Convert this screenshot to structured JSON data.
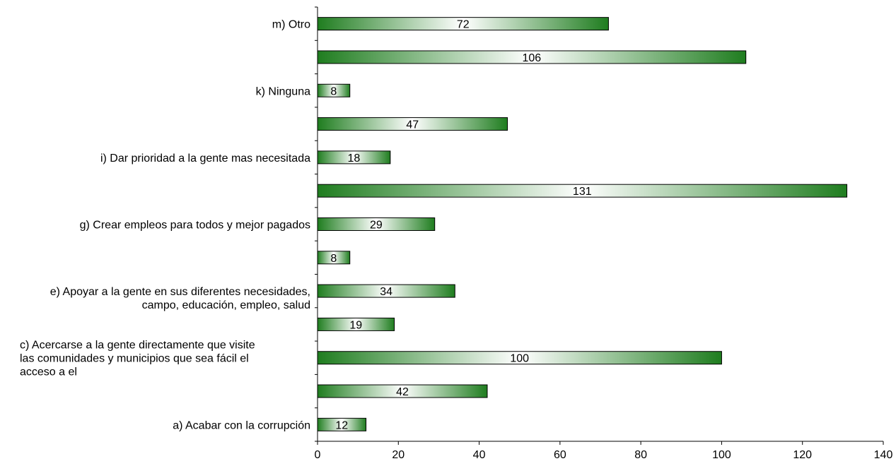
{
  "colors": {
    "bar_dark": "#1f7d1f",
    "bar_light": "#ffffff",
    "bar_stroke": "#000000",
    "axis": "#000000"
  },
  "chart_data": {
    "type": "bar",
    "orientation": "horizontal",
    "title": "",
    "xlabel": "",
    "ylabel": "",
    "xlim": [
      0,
      140
    ],
    "x_ticks": [
      "0",
      "20",
      "40",
      "60",
      "80",
      "100",
      "120",
      "140"
    ],
    "grid": false,
    "legend": "none",
    "categories": [
      "a) Acabar con la corrupción",
      "",
      "c) Acercarse a la gente directamente que visite las comunidades y municipios que sea fácil el acceso a el",
      "",
      "e) Apoyar a la gente en sus diferentes necesidades, campo, educación, empleo, salud",
      "",
      "g) Crear empleos para todos y mejor pagados",
      "",
      "i) Dar prioridad a la gente mas necesitada",
      "",
      "k) Ninguna",
      "",
      "m) Otro"
    ],
    "category_lines": [
      [
        "a) Acabar con la corrupción"
      ],
      [],
      [
        "c) Acercarse a la gente directamente que visite",
        "las comunidades y municipios que sea fácil el",
        "acceso a el"
      ],
      [],
      [
        "e) Apoyar a la gente en sus diferentes necesidades,",
        "campo, educación, empleo, salud"
      ],
      [],
      [
        "g) Crear empleos para todos y mejor pagados"
      ],
      [],
      [
        "i) Dar prioridad a la gente mas necesitada"
      ],
      [],
      [
        "k) Ninguna"
      ],
      [],
      [
        "m) Otro"
      ]
    ],
    "values": [
      12,
      42,
      100,
      19,
      34,
      8,
      29,
      131,
      18,
      47,
      8,
      106,
      72
    ],
    "data_labels": [
      "12",
      "42",
      "100",
      "19",
      "34",
      "8",
      "29",
      "131",
      "18",
      "47",
      "8",
      "106",
      "72"
    ]
  }
}
